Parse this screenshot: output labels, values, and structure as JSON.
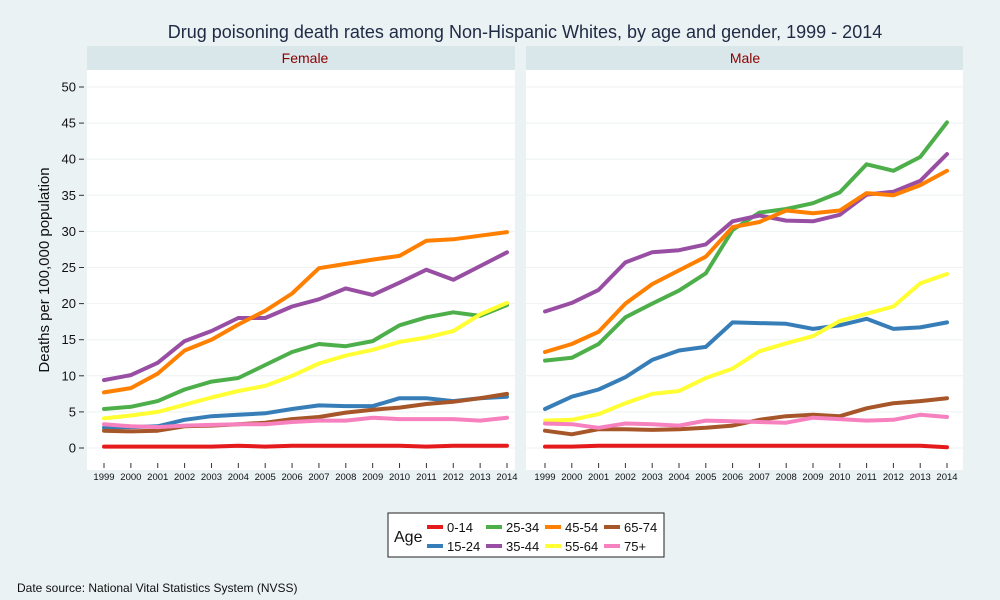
{
  "chart_data": {
    "type": "line",
    "title": "Drug poisoning death rates among Non-Hispanic Whites, by age and gender, 1999 - 2014",
    "ylabel": "Deaths per 100,000 population",
    "xlabel": "",
    "source": "Date source: National Vital Statistics System (NVSS)",
    "x": [
      1999,
      2000,
      2001,
      2002,
      2003,
      2004,
      2005,
      2006,
      2007,
      2008,
      2009,
      2010,
      2011,
      2012,
      2013,
      2014
    ],
    "yticks": [
      0,
      5,
      10,
      15,
      20,
      25,
      30,
      35,
      40,
      45,
      50
    ],
    "ylim": [
      0,
      50
    ],
    "grid": true,
    "legend": {
      "title": "Age",
      "position": "bottom-center"
    },
    "colors": {
      "0-14": "#e41a1c",
      "15-24": "#377eb8",
      "25-34": "#4daf4a",
      "35-44": "#984ea3",
      "45-54": "#ff7f00",
      "55-64": "#ffff33",
      "65-74": "#a65628",
      "75+": "#f781bf"
    },
    "legend_order": [
      "0-14",
      "15-24",
      "25-34",
      "35-44",
      "45-54",
      "55-64",
      "65-74",
      "75+"
    ],
    "panels": [
      {
        "name": "Female",
        "series": [
          {
            "name": "0-14",
            "values": [
              0.2,
              0.2,
              0.2,
              0.2,
              0.2,
              0.3,
              0.2,
              0.3,
              0.3,
              0.3,
              0.3,
              0.3,
              0.2,
              0.3,
              0.3,
              0.3
            ]
          },
          {
            "name": "15-24",
            "values": [
              2.8,
              2.9,
              3.0,
              3.9,
              4.4,
              4.6,
              4.8,
              5.4,
              5.9,
              5.8,
              5.8,
              6.9,
              6.9,
              6.5,
              6.9,
              7.1
            ]
          },
          {
            "name": "25-34",
            "values": [
              5.4,
              5.7,
              6.5,
              8.1,
              9.2,
              9.7,
              11.5,
              13.3,
              14.4,
              14.1,
              14.8,
              17.0,
              18.1,
              18.8,
              18.3,
              19.8
            ]
          },
          {
            "name": "35-44",
            "values": [
              9.4,
              10.1,
              11.8,
              14.8,
              16.2,
              18.0,
              18.0,
              19.6,
              20.6,
              22.1,
              21.2,
              22.9,
              24.7,
              23.3,
              25.2,
              27.1
            ]
          },
          {
            "name": "45-54",
            "values": [
              7.7,
              8.3,
              10.3,
              13.5,
              15.0,
              17.1,
              19.0,
              21.4,
              24.9,
              25.5,
              26.1,
              26.6,
              28.7,
              28.9,
              29.4,
              29.9
            ]
          },
          {
            "name": "55-64",
            "values": [
              4.1,
              4.5,
              5.0,
              6.0,
              7.0,
              7.9,
              8.6,
              10.0,
              11.7,
              12.8,
              13.6,
              14.7,
              15.3,
              16.2,
              18.5,
              20.1
            ]
          },
          {
            "name": "65-74",
            "values": [
              2.4,
              2.3,
              2.4,
              3.0,
              3.1,
              3.3,
              3.5,
              4.0,
              4.3,
              4.9,
              5.3,
              5.6,
              6.1,
              6.4,
              6.9,
              7.5
            ]
          },
          {
            "name": "75+",
            "values": [
              3.3,
              3.0,
              2.9,
              3.1,
              3.2,
              3.3,
              3.3,
              3.6,
              3.8,
              3.8,
              4.2,
              4.0,
              4.0,
              4.0,
              3.8,
              4.2
            ]
          }
        ]
      },
      {
        "name": "Male",
        "series": [
          {
            "name": "0-14",
            "values": [
              0.2,
              0.2,
              0.3,
              0.3,
              0.3,
              0.3,
              0.3,
              0.3,
              0.3,
              0.3,
              0.3,
              0.3,
              0.3,
              0.3,
              0.3,
              0.1
            ]
          },
          {
            "name": "15-24",
            "values": [
              5.4,
              7.1,
              8.1,
              9.8,
              12.2,
              13.5,
              14.0,
              17.4,
              17.3,
              17.2,
              16.5,
              17.0,
              17.9,
              16.5,
              16.7,
              17.4
            ]
          },
          {
            "name": "25-34",
            "values": [
              12.1,
              12.5,
              14.4,
              18.1,
              20.0,
              21.8,
              24.2,
              30.2,
              32.6,
              33.1,
              33.9,
              35.4,
              39.3,
              38.4,
              40.3,
              45.1
            ]
          },
          {
            "name": "35-44",
            "values": [
              18.9,
              20.1,
              21.9,
              25.7,
              27.1,
              27.4,
              28.2,
              31.4,
              32.2,
              31.5,
              31.4,
              32.3,
              35.1,
              35.5,
              37.0,
              40.7
            ]
          },
          {
            "name": "45-54",
            "values": [
              13.3,
              14.4,
              16.1,
              20.0,
              22.7,
              24.6,
              26.5,
              30.6,
              31.3,
              32.9,
              32.5,
              32.9,
              35.3,
              35.0,
              36.4,
              38.4
            ]
          },
          {
            "name": "55-64",
            "values": [
              3.8,
              3.9,
              4.7,
              6.2,
              7.5,
              7.9,
              9.7,
              11.0,
              13.4,
              14.5,
              15.5,
              17.6,
              18.6,
              19.6,
              22.8,
              24.1
            ]
          },
          {
            "name": "65-74",
            "values": [
              2.4,
              1.9,
              2.6,
              2.6,
              2.5,
              2.6,
              2.8,
              3.1,
              3.9,
              4.4,
              4.6,
              4.4,
              5.5,
              6.2,
              6.5,
              6.9
            ]
          },
          {
            "name": "75+",
            "values": [
              3.4,
              3.3,
              2.8,
              3.4,
              3.3,
              3.1,
              3.8,
              3.7,
              3.6,
              3.5,
              4.2,
              4.0,
              3.8,
              3.9,
              4.6,
              4.3
            ]
          }
        ]
      }
    ]
  }
}
